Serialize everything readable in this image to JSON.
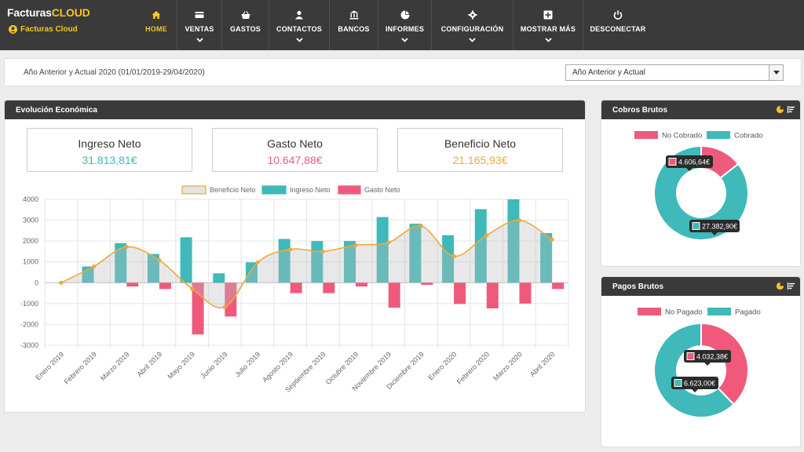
{
  "app": {
    "brand_left": "Facturas",
    "brand_right": "CLOUD",
    "company": "Facturas Cloud"
  },
  "nav": [
    {
      "label": "HOME",
      "icon": "home-icon",
      "active": true,
      "dropdown": false
    },
    {
      "label": "VENTAS",
      "icon": "card-icon",
      "active": false,
      "dropdown": true
    },
    {
      "label": "GASTOS",
      "icon": "basket-icon",
      "active": false,
      "dropdown": false
    },
    {
      "label": "CONTACTOS",
      "icon": "user-icon",
      "active": false,
      "dropdown": true
    },
    {
      "label": "BANCOS",
      "icon": "bank-icon",
      "active": false,
      "dropdown": false
    },
    {
      "label": "INFORMES",
      "icon": "pie-icon",
      "active": false,
      "dropdown": true
    },
    {
      "label": "CONFIGURACIÓN",
      "icon": "gear-icon",
      "active": false,
      "dropdown": true
    },
    {
      "label": "MOSTRAR MÁS",
      "icon": "plus-icon",
      "active": false,
      "dropdown": true
    },
    {
      "label": "DESCONECTAR",
      "icon": "power-icon",
      "active": false,
      "dropdown": false
    }
  ],
  "period": {
    "text": "Año Anterior y Actual 2020 (01/01/2019-29/04/2020)",
    "selected": "Año Anterior y Actual"
  },
  "evolucion": {
    "title": "Evolución Económica",
    "kpis": [
      {
        "title": "Ingreso Neto",
        "value": "31.813,81€",
        "color": "#3fb9b9"
      },
      {
        "title": "Gasto Neto",
        "value": "10.647,88€",
        "color": "#ef5a7c"
      },
      {
        "title": "Beneficio Neto",
        "value": "21.165,93€",
        "color": "#f0a83a"
      }
    ]
  },
  "cobros": {
    "title": "Cobros Brutos",
    "legend": [
      "No Cobrado",
      "Cobrado"
    ],
    "values": [
      4606.64,
      27382.9
    ],
    "labels": [
      "4.606,64€",
      "27.382,90€"
    ]
  },
  "pagos": {
    "title": "Pagos Brutos",
    "legend": [
      "No Pagado",
      "Pagado"
    ],
    "values": [
      4032.38,
      6623.0
    ],
    "labels": [
      "4.032,38€",
      "6.623,00€"
    ]
  },
  "colors": {
    "ingreso": "#3fb9b9",
    "gasto": "#ef5a7c",
    "beneficio": "#f0a83a",
    "accent": "#f3c623",
    "header": "#3a3a3a"
  },
  "chart_data": {
    "type": "bar",
    "categories": [
      "Enero 2019",
      "Febrero 2019",
      "Marzo 2019",
      "Abril 2019",
      "Mayo 2019",
      "Junio 2019",
      "Julio 2019",
      "Agosto 2019",
      "Septiembre 2019",
      "Octubre 2019",
      "Noviembre 2019",
      "Diciembre 2019",
      "Enero 2020",
      "Febrero 2020",
      "Marzo 2020",
      "Abril 2020"
    ],
    "series": [
      {
        "name": "Beneficio Neto",
        "type": "area",
        "values": [
          0,
          780,
          1720,
          1080,
          -290,
          -1170,
          970,
          1600,
          1500,
          1800,
          1930,
          2720,
          1270,
          2280,
          3000,
          2070
        ]
      },
      {
        "name": "Ingreso Neto",
        "type": "bar",
        "values": [
          0,
          780,
          1900,
          1380,
          2180,
          450,
          980,
          2100,
          2000,
          2000,
          3150,
          2830,
          2280,
          3530,
          4000,
          2380
        ]
      },
      {
        "name": "Gasto Neto",
        "type": "bar",
        "values": [
          0,
          0,
          -180,
          -300,
          -2480,
          -1620,
          0,
          -500,
          -500,
          -180,
          -1200,
          -100,
          -1020,
          -1230,
          -1000,
          -300
        ]
      }
    ],
    "ylim": [
      -3000,
      4000
    ],
    "yticks": [
      -3000,
      -2000,
      -1000,
      0,
      1000,
      2000,
      3000,
      4000
    ],
    "legend": "top",
    "grid": true
  }
}
